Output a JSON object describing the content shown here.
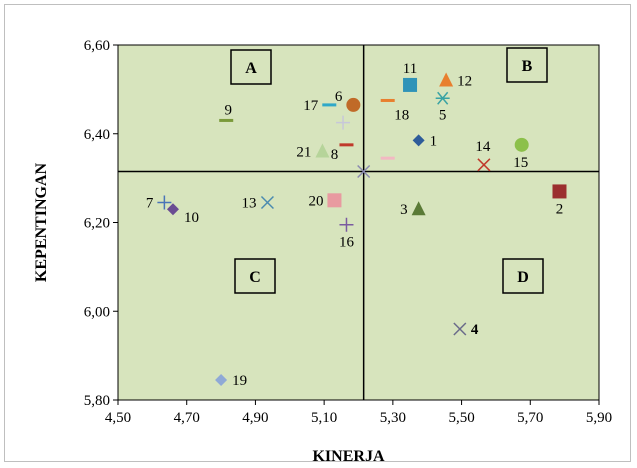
{
  "chart_data": {
    "type": "scatter",
    "title": "",
    "xlabel": "KINERJA",
    "ylabel": "KEPENTINGAN",
    "xlim": [
      4.5,
      5.9
    ],
    "ylim": [
      5.8,
      6.6
    ],
    "x_ticks": [
      "4,50",
      "4,70",
      "4,90",
      "5,10",
      "5,30",
      "5,50",
      "5,70",
      "5,90"
    ],
    "y_ticks": [
      "5,80",
      "6,00",
      "6,20",
      "6,40",
      "6,60"
    ],
    "crosshair": {
      "x": 5.215,
      "y": 6.315
    },
    "quadrants": [
      "A",
      "B",
      "C",
      "D"
    ],
    "points": [
      {
        "label": "1",
        "x": 5.375,
        "y": 6.385,
        "marker": "diamond",
        "color": "#2e5c9a",
        "label_pos": "right"
      },
      {
        "label": "2",
        "x": 5.785,
        "y": 6.27,
        "marker": "square",
        "color": "#9b2f2f",
        "label_pos": "below"
      },
      {
        "label": "3",
        "x": 5.375,
        "y": 6.23,
        "marker": "triangle",
        "color": "#5a7a36",
        "label_pos": "left"
      },
      {
        "label": "4",
        "x": 5.495,
        "y": 5.96,
        "marker": "x",
        "color": "#6a6a8a",
        "label_pos": "right",
        "bold": true
      },
      {
        "label": "5",
        "x": 5.445,
        "y": 6.48,
        "marker": "asterisk",
        "color": "#3aa3a3",
        "label_pos": "below"
      },
      {
        "label": "6",
        "x": 5.185,
        "y": 6.465,
        "marker": "circle",
        "color": "#c06a28",
        "label_pos": "left"
      },
      {
        "label": "7",
        "x": 4.635,
        "y": 6.245,
        "marker": "plus",
        "color": "#4a74b8",
        "label_pos": "left"
      },
      {
        "label": "8",
        "x": 5.165,
        "y": 6.375,
        "marker": "dash",
        "color": "#c0392b",
        "label_pos": "below"
      },
      {
        "label": "9",
        "x": 4.815,
        "y": 6.43,
        "marker": "dash",
        "color": "#7a9a3a",
        "label_pos": "above"
      },
      {
        "label": "10",
        "x": 4.66,
        "y": 6.23,
        "marker": "diamond",
        "color": "#6a4c93",
        "label_pos": "right"
      },
      {
        "label": "11",
        "x": 5.35,
        "y": 6.51,
        "marker": "square",
        "color": "#2f93b8",
        "label_pos": "above"
      },
      {
        "label": "12",
        "x": 5.455,
        "y": 6.52,
        "marker": "triangle",
        "color": "#e87f2e",
        "label_pos": "right"
      },
      {
        "label": "13",
        "x": 4.935,
        "y": 6.245,
        "marker": "x",
        "color": "#4a8ab0",
        "label_pos": "left"
      },
      {
        "label": "14",
        "x": 5.565,
        "y": 6.33,
        "marker": "x",
        "color": "#c0392b",
        "label_pos": "above"
      },
      {
        "label": "15",
        "x": 5.675,
        "y": 6.375,
        "marker": "circle",
        "color": "#8cc04a",
        "label_pos": "below"
      },
      {
        "label": "16",
        "x": 5.165,
        "y": 6.195,
        "marker": "plus",
        "color": "#7a5aa0",
        "label_pos": "below"
      },
      {
        "label": "17",
        "x": 5.115,
        "y": 6.465,
        "marker": "dash",
        "color": "#2fa8c8",
        "label_pos": "left"
      },
      {
        "label": "18",
        "x": 5.285,
        "y": 6.475,
        "marker": "dash",
        "color": "#e87f2e",
        "label_pos": "below"
      },
      {
        "label": "19",
        "x": 4.8,
        "y": 5.845,
        "marker": "diamond",
        "color": "#8fa9d6",
        "label_pos": "right"
      },
      {
        "label": "20",
        "x": 5.13,
        "y": 6.25,
        "marker": "square",
        "color": "#e89aa0",
        "label_pos": "left"
      },
      {
        "label": "21",
        "x": 5.095,
        "y": 6.36,
        "marker": "triangle",
        "color": "#b6d49a",
        "label_pos": "left"
      },
      {
        "label": "",
        "x": 5.155,
        "y": 6.425,
        "marker": "plus",
        "color": "#c7c7d9",
        "label_pos": "none"
      },
      {
        "label": "",
        "x": 5.285,
        "y": 6.345,
        "marker": "dash",
        "color": "#f2b8c2",
        "label_pos": "none"
      },
      {
        "label": "",
        "x": 5.215,
        "y": 6.315,
        "marker": "x",
        "color": "#8a8ab0",
        "label_pos": "none"
      }
    ]
  },
  "colors": {
    "plot_bg": "#d7e4bd",
    "axis": "#000000"
  }
}
